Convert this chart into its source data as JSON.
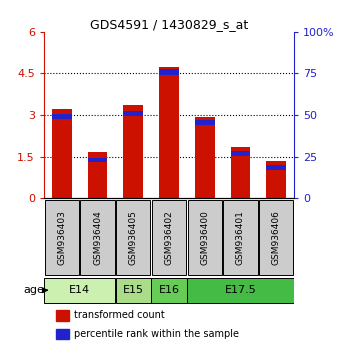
{
  "title": "GDS4591 / 1430829_s_at",
  "samples": [
    "GSM936403",
    "GSM936404",
    "GSM936405",
    "GSM936402",
    "GSM936400",
    "GSM936401",
    "GSM936406"
  ],
  "red_values": [
    3.22,
    1.65,
    3.35,
    4.75,
    2.92,
    1.83,
    1.35
  ],
  "blue_values": [
    3.02,
    1.45,
    3.15,
    4.65,
    2.82,
    1.72,
    1.2
  ],
  "age_groups": [
    {
      "label": "E14",
      "start": 0,
      "end": 2,
      "color": "#ccf0b0"
    },
    {
      "label": "E15",
      "start": 2,
      "end": 3,
      "color": "#aadd88"
    },
    {
      "label": "E16",
      "start": 3,
      "end": 4,
      "color": "#66cc55"
    },
    {
      "label": "E17.5",
      "start": 4,
      "end": 7,
      "color": "#44bb44"
    }
  ],
  "ylim": [
    0,
    6
  ],
  "yticks": [
    0,
    1.5,
    3.0,
    4.5,
    6
  ],
  "ytick_labels": [
    "0",
    "1.5",
    "3",
    "4.5",
    "6"
  ],
  "right_yticks": [
    0,
    25,
    50,
    75,
    100
  ],
  "right_ylabels": [
    "0",
    "25",
    "50",
    "75",
    "100%"
  ],
  "bar_width": 0.55,
  "red_color": "#cc1100",
  "blue_color": "#2222cc",
  "bg_color": "#ffffff",
  "sample_bg": "#cccccc",
  "legend_red": "transformed count",
  "legend_blue": "percentile rank within the sample",
  "blue_bar_height": [
    0.18,
    0.15,
    0.18,
    0.2,
    0.18,
    0.18,
    0.18
  ]
}
